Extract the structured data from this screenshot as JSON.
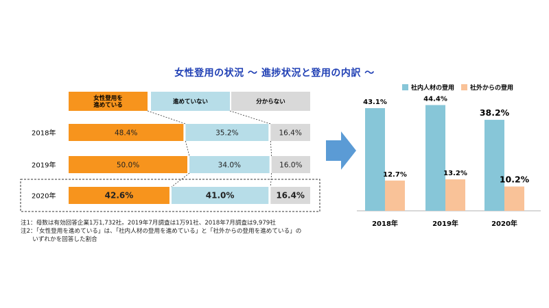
{
  "title": "女性登用の状況 ～ 進捗状況と登用の内訳 ～",
  "colors": {
    "title": "#1f3fb4",
    "progressing": "#f7941d",
    "not_progressing": "#b7dde8",
    "unknown": "#d9d9d9",
    "internal": "#87c6d8",
    "external": "#f9c298",
    "arrow": "#5b9bd5"
  },
  "notes": [
    "注1：母数は有効回答企業1万1,732社。2019年7月調査は1万91社、2018年7月調査は9,979社",
    "注2：「女性登用を進めている」は、「社内人材の登用を進めている」と「社外からの登用を進めている」の",
    "　　いずれかを回答した割合"
  ],
  "arrow_icon": "right-arrow-icon",
  "chart_data": [
    {
      "type": "bar",
      "orientation": "horizontal",
      "stacked": true,
      "legend_position": "top",
      "categories": [
        "2018年",
        "2019年",
        "2020年"
      ],
      "series": [
        {
          "name": "女性登用を進めている",
          "legend_lines": [
            "女性登用を",
            "進めている"
          ],
          "values": [
            48.4,
            50.0,
            42.6
          ],
          "labels": [
            "48.4%",
            "50.0%",
            "42.6%"
          ]
        },
        {
          "name": "進めていない",
          "legend_lines": [
            "進めていない"
          ],
          "values": [
            35.2,
            34.0,
            41.0
          ],
          "labels": [
            "35.2%",
            "34.0%",
            "41.0%"
          ]
        },
        {
          "name": "分からない",
          "legend_lines": [
            "分からない"
          ],
          "values": [
            16.4,
            16.0,
            16.4
          ],
          "labels": [
            "16.4%",
            "16.0%",
            "16.4%"
          ]
        }
      ],
      "highlight_category": "2020年",
      "xlim": [
        0,
        100
      ]
    },
    {
      "type": "bar",
      "orientation": "vertical",
      "legend_position": "top",
      "categories": [
        "2018年",
        "2019年",
        "2020年"
      ],
      "series": [
        {
          "name": "社内人材の登用",
          "values": [
            43.1,
            44.4,
            38.2
          ],
          "labels": [
            "43.1%",
            "44.4%",
            "38.2%"
          ]
        },
        {
          "name": "社外からの登用",
          "values": [
            12.7,
            13.2,
            10.2
          ],
          "labels": [
            "12.7%",
            "13.2%",
            "10.2%"
          ]
        }
      ],
      "ylim": [
        0,
        50
      ]
    }
  ]
}
